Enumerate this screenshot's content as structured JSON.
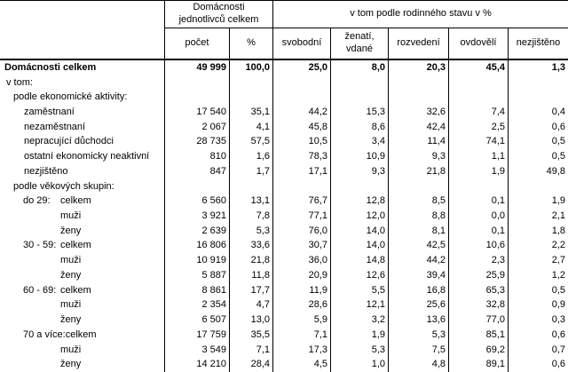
{
  "table": {
    "header": {
      "group_individuals": "Domácnosti jednotlivců celkem",
      "group_marital": "v tom podle rodinného stavu v %",
      "col_count": "počet",
      "col_percent": "%",
      "col_single": "svobodní",
      "col_married": "ženatí, vdané",
      "col_divorced": "rozvedení",
      "col_widowed": "ovdovělí",
      "col_unknown": "nezjištěno"
    },
    "rows": [
      {
        "label": "Domácnosti celkem",
        "indent": 0,
        "bold": true,
        "values": [
          "49 999",
          "100,0",
          "25,0",
          "8,0",
          "20,3",
          "45,4",
          "1,3"
        ]
      },
      {
        "label": "v tom:",
        "indent": 1,
        "values": [
          "",
          "",
          "",
          "",
          "",
          "",
          ""
        ]
      },
      {
        "label": "podle ekonomické aktivity:",
        "indent": 2,
        "values": [
          "",
          "",
          "",
          "",
          "",
          "",
          ""
        ]
      },
      {
        "label": "zaměstnaní",
        "indent": 3,
        "values": [
          "17 540",
          "35,1",
          "44,2",
          "15,3",
          "32,6",
          "7,4",
          "0,4"
        ]
      },
      {
        "label": "nezaměstnaní",
        "indent": 3,
        "values": [
          "2 067",
          "4,1",
          "45,8",
          "8,6",
          "42,4",
          "2,5",
          "0,6"
        ]
      },
      {
        "label": "nepracující důchodci",
        "indent": 3,
        "values": [
          "28 735",
          "57,5",
          "10,5",
          "3,4",
          "11,4",
          "74,1",
          "0,5"
        ]
      },
      {
        "label": "ostatní ekonomicky neaktivní",
        "indent": 3,
        "values": [
          "810",
          "1,6",
          "78,3",
          "10,9",
          "9,3",
          "1,1",
          "0,5"
        ]
      },
      {
        "label": "nezjištěno",
        "indent": 3,
        "values": [
          "847",
          "1,7",
          "17,1",
          "9,3",
          "21,8",
          "1,9",
          "49,8"
        ]
      },
      {
        "label": "podle věkových skupin:",
        "indent": 2,
        "values": [
          "",
          "",
          "",
          "",
          "",
          "",
          ""
        ]
      },
      {
        "prefix": "do 29:",
        "label": "celkem",
        "indent": 4,
        "values": [
          "6 560",
          "13,1",
          "76,7",
          "12,8",
          "8,5",
          "0,1",
          "1,9"
        ]
      },
      {
        "prefix": "",
        "label": "muži",
        "indent": 4,
        "values": [
          "3 921",
          "7,8",
          "77,1",
          "12,0",
          "8,8",
          "0,0",
          "2,1"
        ]
      },
      {
        "prefix": "",
        "label": "ženy",
        "indent": 4,
        "values": [
          "2 639",
          "5,3",
          "76,0",
          "14,0",
          "8,1",
          "0,1",
          "1,8"
        ]
      },
      {
        "prefix": "30 - 59:",
        "label": "celkem",
        "indent": 4,
        "values": [
          "16 806",
          "33,6",
          "30,7",
          "14,0",
          "42,5",
          "10,6",
          "2,2"
        ]
      },
      {
        "prefix": "",
        "label": "muži",
        "indent": 4,
        "values": [
          "10 919",
          "21,8",
          "36,0",
          "14,8",
          "44,2",
          "2,3",
          "2,7"
        ]
      },
      {
        "prefix": "",
        "label": "ženy",
        "indent": 4,
        "values": [
          "5 887",
          "11,8",
          "20,9",
          "12,6",
          "39,4",
          "25,9",
          "1,2"
        ]
      },
      {
        "prefix": "60 - 69:",
        "label": "celkem",
        "indent": 4,
        "values": [
          "8 861",
          "17,7",
          "11,9",
          "5,5",
          "16,8",
          "65,3",
          "0,5"
        ]
      },
      {
        "prefix": "",
        "label": "muži",
        "indent": 4,
        "values": [
          "2 354",
          "4,7",
          "28,6",
          "12,1",
          "25,6",
          "32,8",
          "0,9"
        ]
      },
      {
        "prefix": "",
        "label": "ženy",
        "indent": 4,
        "values": [
          "6 507",
          "13,0",
          "5,9",
          "3,2",
          "13,6",
          "77,0",
          "0,3"
        ]
      },
      {
        "prefix": "70 a více:",
        "label": "celkem",
        "indent": 4,
        "values": [
          "17 759",
          "35,5",
          "7,1",
          "1,9",
          "5,3",
          "85,1",
          "0,6"
        ]
      },
      {
        "prefix": "",
        "label": "muži",
        "indent": 4,
        "values": [
          "3 549",
          "7,1",
          "17,3",
          "5,3",
          "7,5",
          "69,2",
          "0,7"
        ]
      },
      {
        "prefix": "",
        "label": "ženy",
        "indent": 4,
        "values": [
          "14 210",
          "28,4",
          "4,5",
          "1,0",
          "4,8",
          "89,1",
          "0,6"
        ]
      }
    ],
    "colors": {
      "border": "#000000",
      "text": "#000000",
      "background": "#ffffff"
    }
  }
}
